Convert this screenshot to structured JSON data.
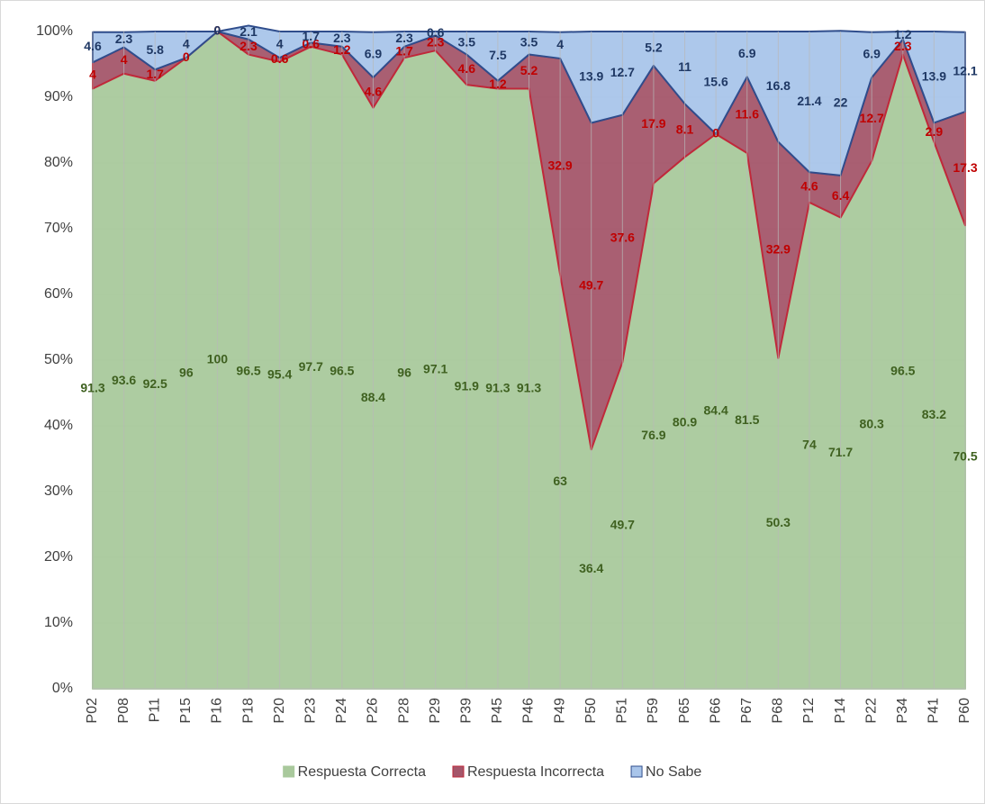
{
  "chart_data": {
    "type": "stacked_area",
    "categories": [
      "P02",
      "P08",
      "P11",
      "P15",
      "P16",
      "P18",
      "P20",
      "P23",
      "P24",
      "P26",
      "P28",
      "P29",
      "P39",
      "P45",
      "P46",
      "P49",
      "P50",
      "P51",
      "P59",
      "P65",
      "P66",
      "P67",
      "P68",
      "P12",
      "P14",
      "P22",
      "P34",
      "P41",
      "P60"
    ],
    "series": [
      {
        "name": "Respuesta Correcta",
        "color": "#a9c99c",
        "stroke": "#a9c99c",
        "label_color": "#3f6120",
        "values": [
          91.3,
          93.6,
          92.5,
          96,
          100,
          96.5,
          95.4,
          97.7,
          96.5,
          88.4,
          96,
          97.1,
          91.9,
          91.3,
          91.3,
          63,
          36.4,
          49.7,
          76.9,
          80.9,
          84.4,
          81.5,
          50.3,
          74,
          71.7,
          80.3,
          96.5,
          83.2,
          70.5
        ]
      },
      {
        "name": "Respuesta Incorrecta",
        "color": "#a4566a",
        "stroke": "#c0283a",
        "label_color": "#c00000",
        "values": [
          4,
          4,
          1.7,
          0,
          0,
          2.3,
          0.6,
          0.6,
          1.2,
          4.6,
          1.7,
          2.3,
          4.6,
          1.2,
          5.2,
          32.9,
          49.7,
          37.6,
          17.9,
          8.1,
          0,
          11.6,
          32.9,
          4.6,
          6.4,
          12.7,
          2.3,
          2.9,
          17.3
        ]
      },
      {
        "name": "No Sabe",
        "color": "#a9c5ea",
        "stroke": "#2f4d8c",
        "label_color": "#1f3864",
        "values": [
          4.6,
          2.3,
          5.8,
          4,
          0,
          2.1,
          4,
          1.7,
          2.3,
          6.9,
          2.3,
          0.6,
          3.5,
          7.5,
          3.5,
          4,
          13.9,
          12.7,
          5.2,
          11,
          15.6,
          6.9,
          16.8,
          21.4,
          22,
          6.9,
          1.2,
          13.9,
          12.1
        ]
      }
    ],
    "ylim": [
      0,
      100
    ],
    "yticks": [
      {
        "value": 0,
        "label": "0%"
      },
      {
        "value": 10,
        "label": "10%"
      },
      {
        "value": 20,
        "label": "20%"
      },
      {
        "value": 30,
        "label": "30%"
      },
      {
        "value": 40,
        "label": "40%"
      },
      {
        "value": 50,
        "label": "50%"
      },
      {
        "value": 60,
        "label": "60%"
      },
      {
        "value": 70,
        "label": "70%"
      },
      {
        "value": 80,
        "label": "80%"
      },
      {
        "value": 90,
        "label": "90%"
      },
      {
        "value": 100,
        "label": "100%"
      }
    ],
    "grid": true,
    "legend": "bottom"
  }
}
